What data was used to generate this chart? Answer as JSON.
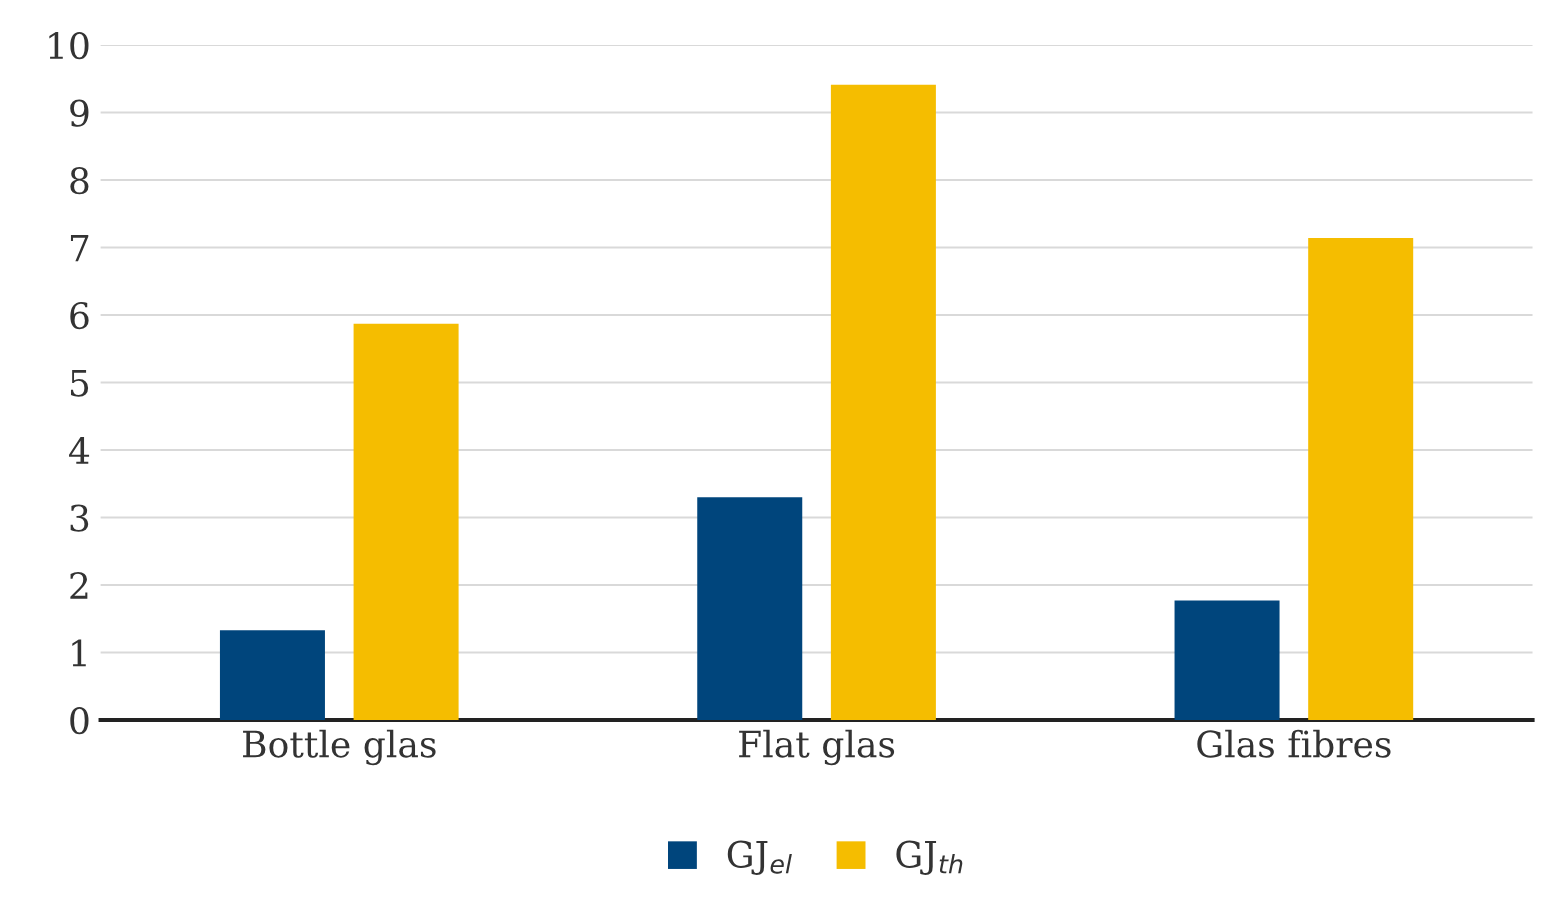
{
  "chart_data": {
    "type": "bar",
    "categories": [
      "Bottle glas",
      "Flat glas",
      "Glas fibres"
    ],
    "series": [
      {
        "name": "GJ$_{el}$",
        "color": "#00457c",
        "values": [
          1.33,
          3.3,
          1.77
        ]
      },
      {
        "name": "GJ$_{th}$",
        "color": "#f5bd00",
        "values": [
          5.87,
          9.41,
          7.14
        ]
      }
    ],
    "ylim": [
      0,
      10
    ],
    "yticks": [
      0,
      1,
      2,
      3,
      4,
      5,
      6,
      7,
      8,
      9,
      10
    ],
    "grid": "y",
    "legend": "bottom"
  }
}
